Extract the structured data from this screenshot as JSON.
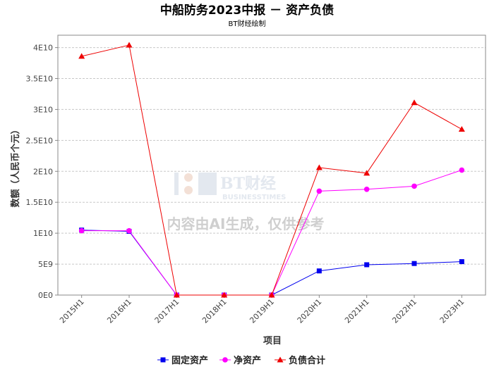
{
  "chart_data": {
    "type": "line",
    "title": "中船防务2023中报 － 资产负债",
    "subtitle": "BT财经绘制",
    "xlabel": "项目",
    "ylabel": "数额（人民币个元）",
    "categories": [
      "2015H1",
      "2016H1",
      "2017H1",
      "2018H1",
      "2019H1",
      "2020H1",
      "2021H1",
      "2022H1",
      "2023H1"
    ],
    "ylim": [
      0,
      42000000000
    ],
    "yticks": [
      0,
      5000000000,
      10000000000,
      15000000000,
      20000000000,
      25000000000,
      30000000000,
      35000000000,
      40000000000
    ],
    "ytick_labels": [
      "0E0",
      "5E9",
      "1E10",
      "1.5E10",
      "2E10",
      "2.5E10",
      "3E10",
      "3.5E10",
      "4E10"
    ],
    "grid": true,
    "legend_position": "bottom",
    "series": [
      {
        "name": "固定资产",
        "color": "#0000ee",
        "marker": "square",
        "values": [
          10500000000,
          10300000000,
          0,
          0,
          0,
          3900000000,
          4900000000,
          5100000000,
          5400000000
        ]
      },
      {
        "name": "净资产",
        "color": "#ff00ff",
        "marker": "circle",
        "values": [
          10400000000,
          10400000000,
          0,
          0,
          0,
          16800000000,
          17100000000,
          17600000000,
          20200000000
        ]
      },
      {
        "name": "负债合计",
        "color": "#ee0000",
        "marker": "triangle",
        "values": [
          38600000000,
          40400000000,
          0,
          0,
          0,
          20600000000,
          19700000000,
          31100000000,
          26800000000
        ]
      }
    ]
  },
  "watermark": {
    "brand": "BT财经",
    "brand_en": "BUSINESSTIMES",
    "notice": "内容由AI生成，仅供参考"
  }
}
